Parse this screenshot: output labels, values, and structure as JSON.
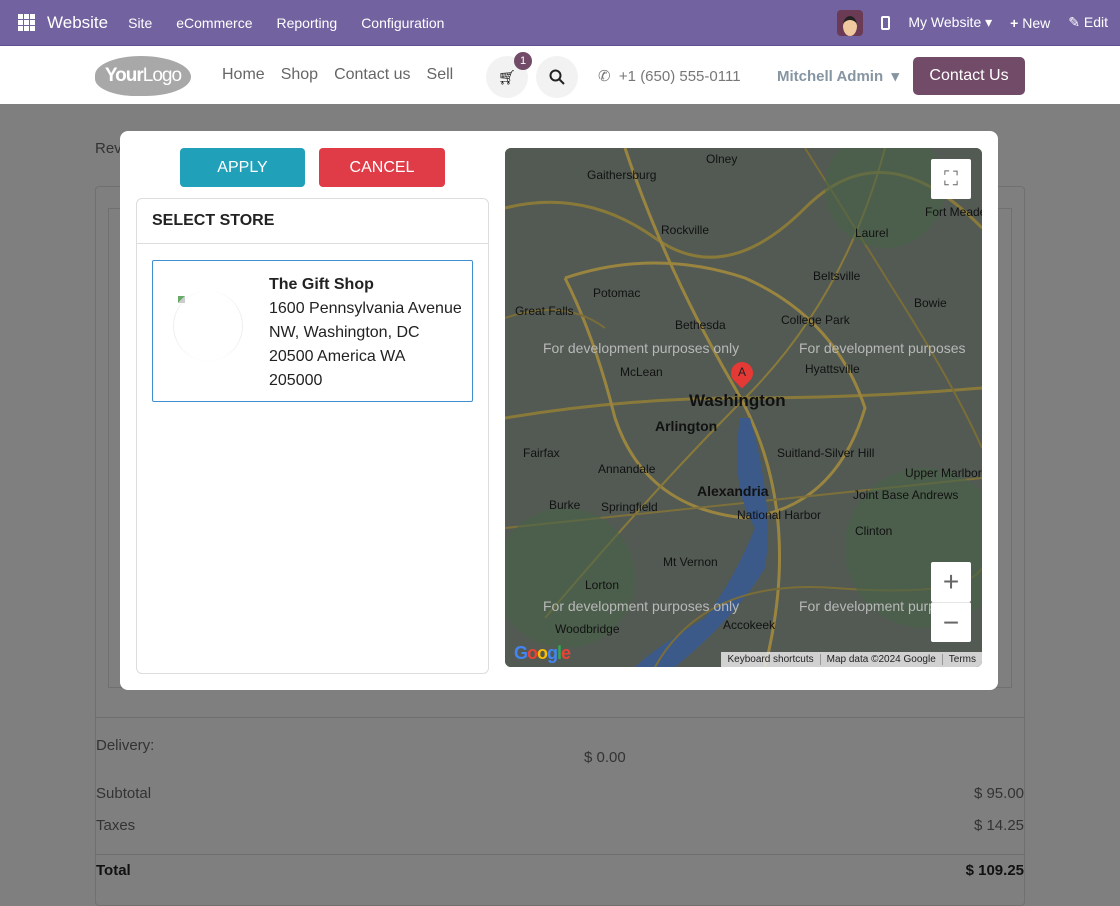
{
  "topbar": {
    "app": "Website",
    "menu": [
      "Site",
      "eCommerce",
      "Reporting",
      "Configuration"
    ],
    "website": "My Website",
    "new": "New",
    "edit": "Edit"
  },
  "navbar": {
    "logo": "YourLogo",
    "links": [
      "Home",
      "Shop",
      "Contact us",
      "Sell"
    ],
    "cart_count": "1",
    "phone": "+1 (650) 555-0111",
    "user": "Mitchell Admin",
    "contact": "Contact Us"
  },
  "background": {
    "review": "Rev",
    "delivery_label": "Delivery:",
    "delivery_value": "$ 0.00",
    "subtotal_label": "Subtotal",
    "subtotal_value": "$ 95.00",
    "taxes_label": "Taxes",
    "taxes_value": "$ 14.25",
    "total_label": "Total",
    "total_value": "$ 109.25"
  },
  "modal": {
    "apply": "APPLY",
    "cancel": "CANCEL",
    "panel_title": "SELECT STORE",
    "store": {
      "name": "The Gift Shop",
      "address": [
        "1600 Pennsylvania Avenue",
        "NW, Washington, DC",
        "20500 America WA",
        "205000"
      ]
    }
  },
  "map": {
    "labels": [
      "Gaithersburg",
      "Olney",
      "Rockville",
      "Laurel",
      "Fort Meade",
      "Potomac",
      "Beltsville",
      "Bowie",
      "Great Falls",
      "Bethesda",
      "College Park",
      "McLean",
      "Hyattsville",
      "Arlington",
      "Fairfax",
      "Annandale",
      "Suitland-Silver Hill",
      "Upper Marlboro",
      "Burke",
      "Springfield",
      "Alexandria",
      "National Harbor",
      "Joint Base Andrews",
      "Clinton",
      "Mt Vernon",
      "Lorton",
      "Accokeek",
      "Woodbridge"
    ],
    "city": "Washington",
    "marker": "A",
    "watermark": "For development purposes only",
    "watermark_cut": "For development purposes",
    "attribution": [
      "Keyboard shortcuts",
      "Map data ©2024 Google",
      "Terms"
    ],
    "google": "Google"
  },
  "colors": {
    "topbar": "#7262a0",
    "brand": "#714b67",
    "apply": "#21a0b9",
    "cancel": "#df3c48"
  }
}
